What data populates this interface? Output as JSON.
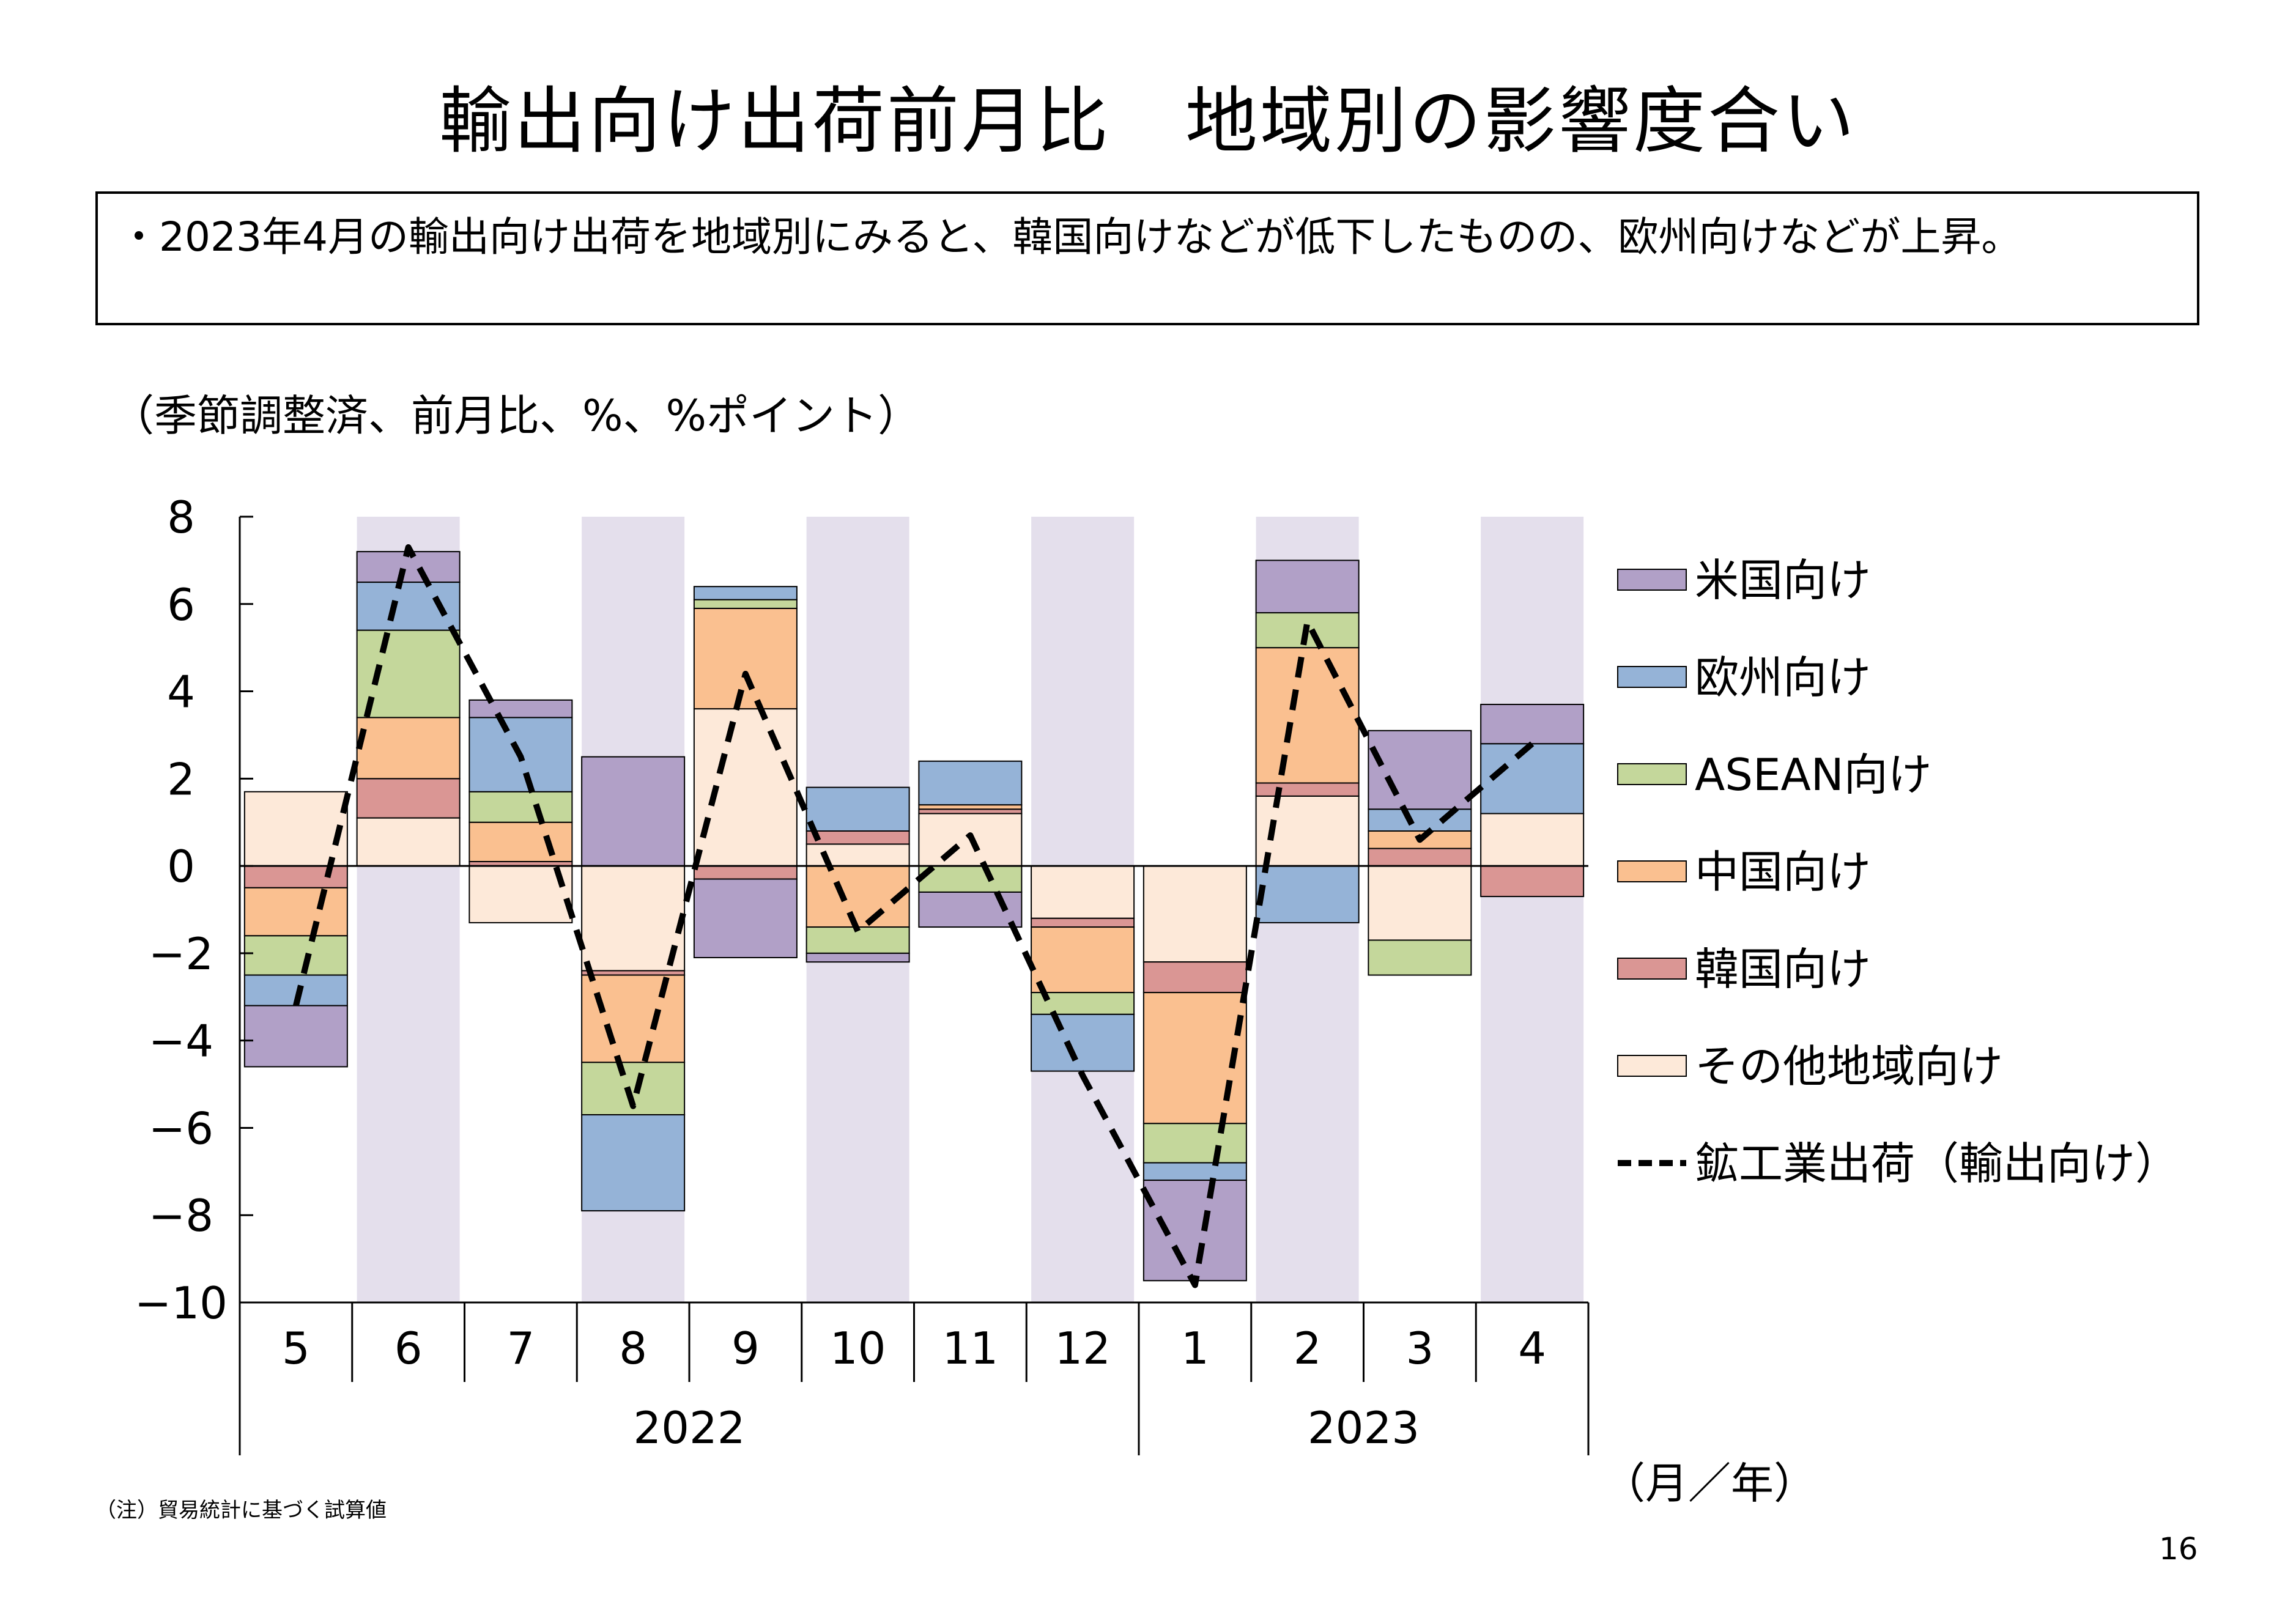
{
  "title": "輸出向け出荷前月比　地域別の影響度合い",
  "note": "・2023年4月の輸出向け出荷を地域別にみると、韓国向けなどが低下したものの、欧州向けなどが上昇。",
  "unit_label": "（季節調整済、前月比、%、%ポイント）",
  "footnote": "（注）貿易統計に基づく試算値",
  "page_number": "16",
  "colors": {
    "us": "#b1a0c7",
    "eu": "#95b3d7",
    "asean": "#c4d79b",
    "china": "#fac090",
    "korea": "#da9694",
    "other": "#fde9d9",
    "shade": "#e4dfec",
    "line": "#000000"
  },
  "chart_data": {
    "type": "bar",
    "stacked": true,
    "x_axis_unit": "（月／年）",
    "categories": [
      "5",
      "6",
      "7",
      "8",
      "9",
      "10",
      "11",
      "12",
      "1",
      "2",
      "3",
      "4"
    ],
    "years": [
      {
        "label": "2022",
        "start": 0,
        "end": 7
      },
      {
        "label": "2023",
        "start": 8,
        "end": 11
      }
    ],
    "shaded_categories": [
      1,
      3,
      5,
      7,
      9,
      11
    ],
    "ylim": [
      -10,
      8
    ],
    "yticks": [
      8,
      6,
      4,
      2,
      0,
      -2,
      -4,
      -6,
      -8,
      -10
    ],
    "ytick_labels": [
      "8",
      "6",
      "4",
      "2",
      "0",
      "−2",
      "−4",
      "−6",
      "−8",
      "−10"
    ],
    "stack_order": [
      "other",
      "korea",
      "china",
      "asean",
      "eu",
      "us"
    ],
    "series": [
      {
        "key": "us",
        "name": "米国向け",
        "values": [
          -1.4,
          0.7,
          0.4,
          2.5,
          -1.8,
          -0.2,
          -0.8,
          0.0,
          -2.3,
          1.2,
          1.8,
          0.9
        ]
      },
      {
        "key": "eu",
        "name": "欧州向け",
        "values": [
          -0.7,
          1.1,
          1.7,
          -2.2,
          0.3,
          1.0,
          1.0,
          -1.3,
          -0.4,
          -1.3,
          0.5,
          1.6
        ]
      },
      {
        "key": "asean",
        "name": "ASEAN向け",
        "values": [
          -0.9,
          2.0,
          0.7,
          -1.2,
          0.2,
          -0.6,
          -0.6,
          -0.5,
          -0.9,
          0.8,
          -0.8,
          0.0
        ]
      },
      {
        "key": "china",
        "name": "中国向け",
        "values": [
          -1.1,
          1.4,
          0.9,
          -2.0,
          2.3,
          -1.4,
          0.1,
          -1.5,
          -3.0,
          3.1,
          0.4,
          0.0
        ]
      },
      {
        "key": "korea",
        "name": "韓国向け",
        "values": [
          -0.5,
          0.9,
          0.1,
          -0.1,
          -0.3,
          0.3,
          0.1,
          -0.2,
          -0.7,
          0.3,
          0.4,
          -0.7
        ]
      },
      {
        "key": "other",
        "name": "その他地域向け",
        "values": [
          1.7,
          1.1,
          -1.3,
          -2.4,
          3.6,
          0.5,
          1.2,
          -1.2,
          -2.2,
          1.6,
          -1.7,
          1.2
        ]
      }
    ],
    "line": {
      "name": "鉱工業出荷（輸出向け）",
      "style": "dashed",
      "values": [
        -3.2,
        7.3,
        2.5,
        -5.5,
        4.4,
        -1.5,
        0.7,
        -4.8,
        -9.6,
        5.6,
        0.6,
        2.8
      ]
    }
  }
}
